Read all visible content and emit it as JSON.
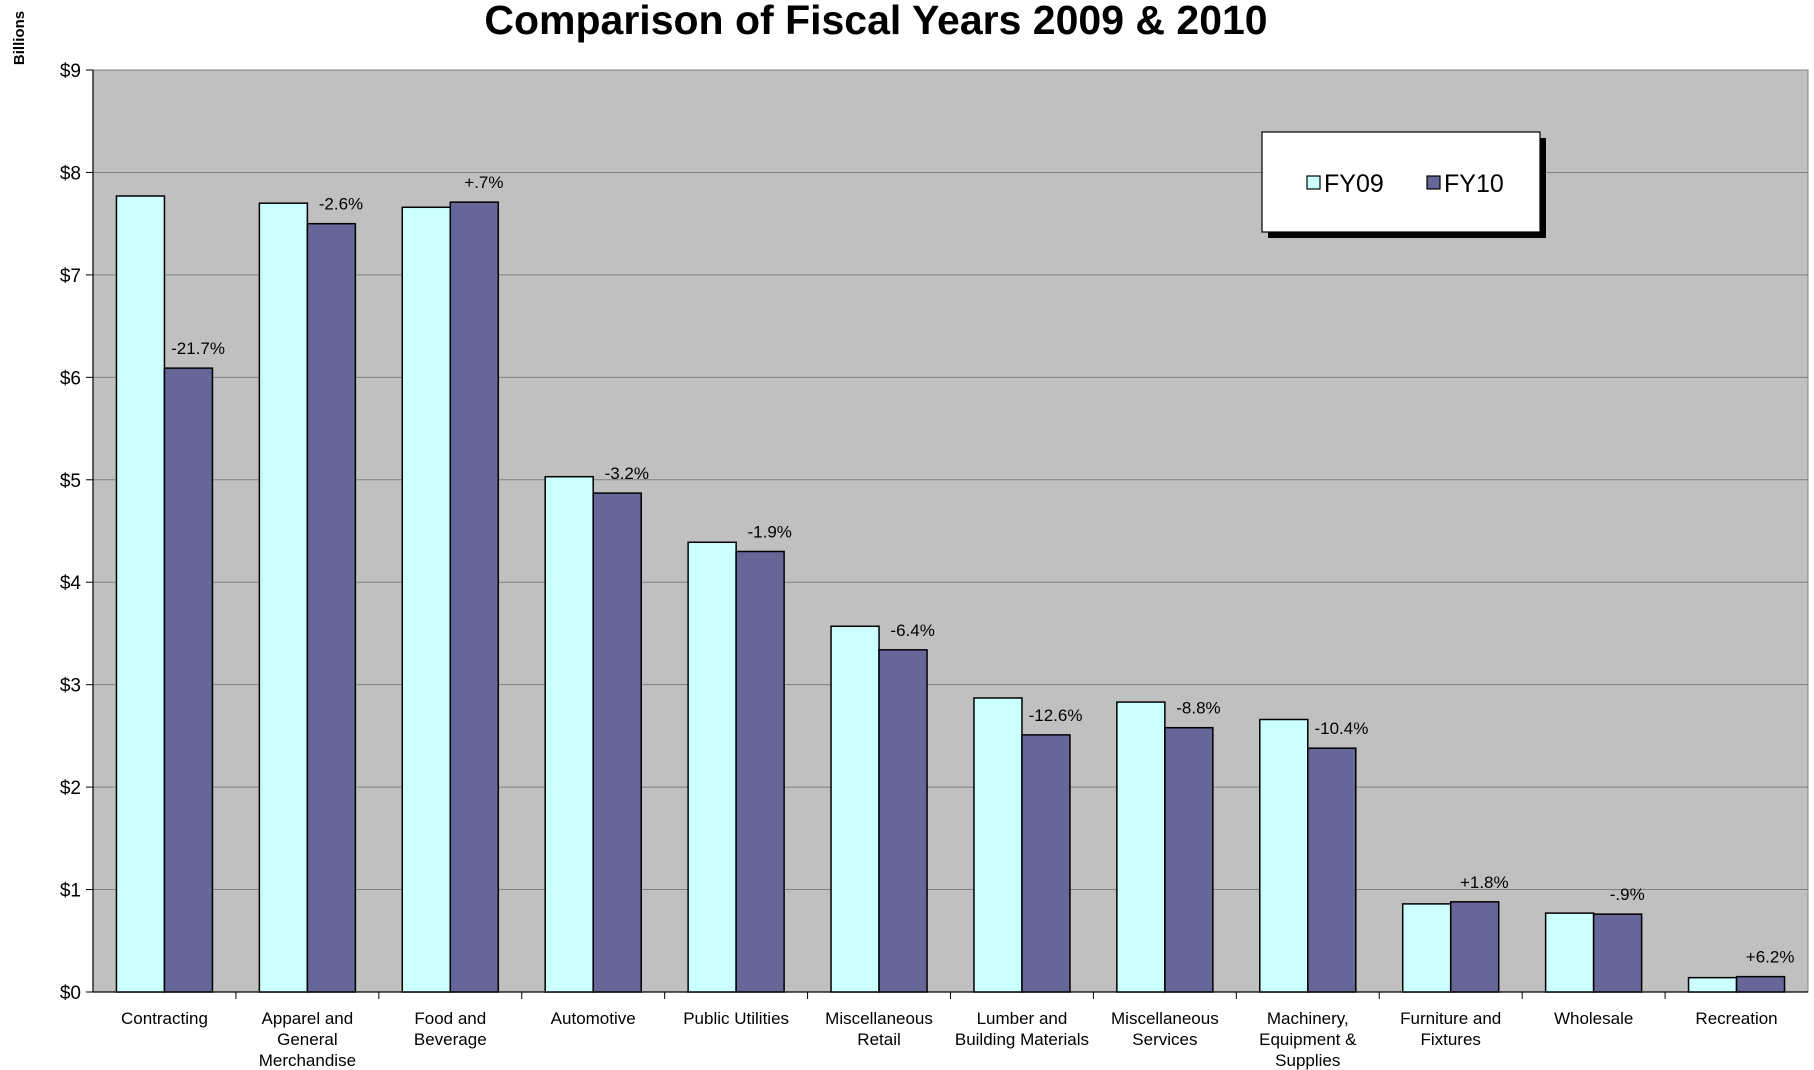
{
  "chart_data": {
    "type": "bar",
    "title": "Comparison of Fiscal Years 2009 & 2010",
    "ylabel": "Billions",
    "xlabel": "",
    "ylim": [
      0,
      9
    ],
    "yticks": [
      "$0",
      "$1",
      "$2",
      "$3",
      "$4",
      "$5",
      "$6",
      "$7",
      "$8",
      "$9"
    ],
    "grid": true,
    "legend_position": "top-right",
    "categories": [
      [
        "Contracting"
      ],
      [
        "Apparel and",
        "General",
        "Merchandise"
      ],
      [
        "Food and",
        "Beverage"
      ],
      [
        "Automotive"
      ],
      [
        "Public Utilities"
      ],
      [
        "Miscellaneous",
        "Retail"
      ],
      [
        "Lumber and",
        "Building Materials"
      ],
      [
        "Miscellaneous",
        "Services"
      ],
      [
        "Machinery,",
        "Equipment &",
        "Supplies"
      ],
      [
        "Furniture and",
        "Fixtures"
      ],
      [
        "Wholesale"
      ],
      [
        "Recreation"
      ]
    ],
    "series": [
      {
        "name": "FY09",
        "color": "#ccffff",
        "values": [
          7.77,
          7.7,
          7.66,
          5.03,
          4.39,
          3.57,
          2.87,
          2.83,
          2.66,
          0.86,
          0.77,
          0.14
        ]
      },
      {
        "name": "FY10",
        "color": "#666699",
        "values": [
          6.09,
          7.5,
          7.71,
          4.87,
          4.3,
          3.34,
          2.51,
          2.58,
          2.38,
          0.88,
          0.76,
          0.15
        ]
      }
    ],
    "data_labels": [
      "-21.7%",
      "-2.6%",
      "+.7%",
      "-3.2%",
      "-1.9%",
      "-6.4%",
      "-12.6%",
      "-8.8%",
      "-10.4%",
      "+1.8%",
      "-.9%",
      "+6.2%"
    ],
    "plot_background": "#c0c0c0"
  }
}
